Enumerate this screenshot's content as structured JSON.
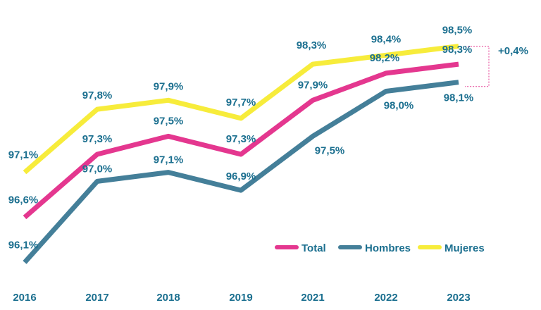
{
  "chart_data": {
    "type": "line",
    "categories": [
      "2016",
      "2017",
      "2018",
      "2019",
      "2021",
      "2022",
      "2023"
    ],
    "ylim": [
      95.9,
      98.7
    ],
    "series": [
      {
        "name": "Mujeres",
        "color": "#f7ec3b",
        "values": [
          97.1,
          97.8,
          97.9,
          97.7,
          98.3,
          98.4,
          98.5
        ],
        "labels": [
          "97,1%",
          "97,8%",
          "97,9%",
          "97,7%",
          "98,3%",
          "98,4%",
          "98,5%"
        ]
      },
      {
        "name": "Total",
        "color": "#e4378f",
        "values": [
          96.6,
          97.3,
          97.5,
          97.3,
          97.9,
          98.2,
          98.3
        ],
        "labels": [
          "96,6%",
          "97,3%",
          "97,5%",
          "97,3%",
          "97,9%",
          "98,2%",
          "98,3%"
        ]
      },
      {
        "name": "Hombres",
        "color": "#447f99",
        "values": [
          96.1,
          97.0,
          97.1,
          96.9,
          97.5,
          98.0,
          98.1
        ],
        "labels": [
          "96,1%",
          "97,0%",
          "97,1%",
          "96,9%",
          "97,5%",
          "98,0%",
          "98,1%"
        ]
      }
    ],
    "legend": [
      "Total",
      "Hombres",
      "Mujeres"
    ],
    "legend_placement": "bottom-right",
    "annotation": "+0,4%",
    "annotation_color": "#e4378f",
    "label_color": "#1b6f8f"
  }
}
